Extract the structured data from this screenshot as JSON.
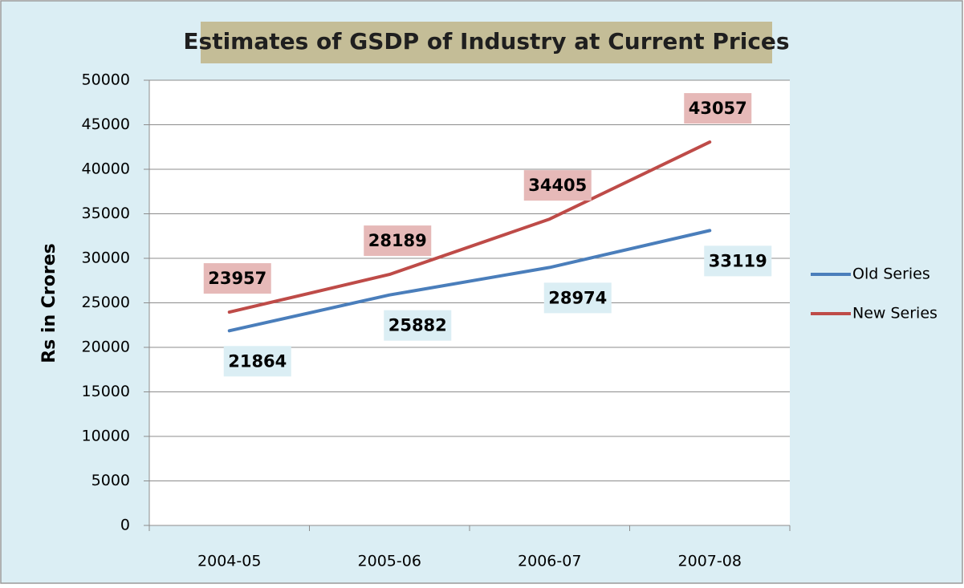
{
  "chart_data": {
    "type": "line",
    "title": "Estimates of GSDP of Industry at Current Prices",
    "y_label": "Rs in Crores",
    "categories": [
      "2004-05",
      "2005-06",
      "2006-07",
      "2007-08"
    ],
    "series": [
      {
        "name": "Old Series",
        "color": "#4a7ebb",
        "values": [
          21864,
          25882,
          28974,
          33119
        ]
      },
      {
        "name": "New Series",
        "color": "#be4b48",
        "values": [
          23957,
          28189,
          34405,
          43057
        ]
      }
    ],
    "ylim": [
      0,
      50000
    ],
    "yticks": [
      0,
      5000,
      10000,
      15000,
      20000,
      25000,
      30000,
      35000,
      40000,
      45000,
      50000
    ],
    "grid": true,
    "legend": "right"
  }
}
